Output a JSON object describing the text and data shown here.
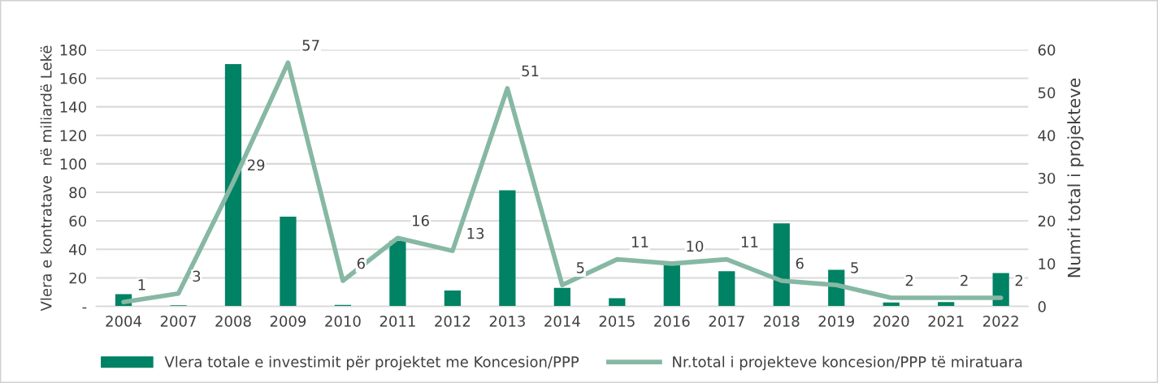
{
  "chart_data": {
    "type": "bar",
    "categories": [
      "2004",
      "2007",
      "2008",
      "2009",
      "2010",
      "2011",
      "2012",
      "2013",
      "2014",
      "2015",
      "2016",
      "2017",
      "2018",
      "2019",
      "2020",
      "2021",
      "2022"
    ],
    "series": [
      {
        "name": "Vlera totale e investimit për projektet me Koncesion/PPP",
        "color": "#008265",
        "values": [
          8.6,
          0.7,
          170,
          63,
          1.1,
          46,
          11.2,
          81.4,
          13,
          5.8,
          28.8,
          24.7,
          58.3,
          25.6,
          2.7,
          3.1,
          23.4
        ]
      },
      {
        "name": "Nr.total i projekteve koncesion/PPP të miratuara",
        "type": "line",
        "axis": "y2",
        "color": "#86b8a3",
        "data_labels": true,
        "values": [
          1,
          3,
          29,
          57,
          6,
          16,
          13,
          51,
          5,
          11,
          10,
          11,
          6,
          5,
          2,
          2,
          2
        ]
      }
    ],
    "ylabel": "Vlera e kontratave  në miliardë Lekë",
    "y2label": "Numri total i projekteve",
    "ylim": [
      0,
      180
    ],
    "yticks": [
      {
        "value": 0,
        "label": "-"
      },
      20,
      40,
      60,
      80,
      100,
      120,
      140,
      160,
      180
    ],
    "y2lim": [
      0,
      60
    ],
    "y2ticks": [
      0,
      10,
      20,
      30,
      40,
      50,
      60
    ],
    "grid": "y",
    "legend": "bottom"
  }
}
